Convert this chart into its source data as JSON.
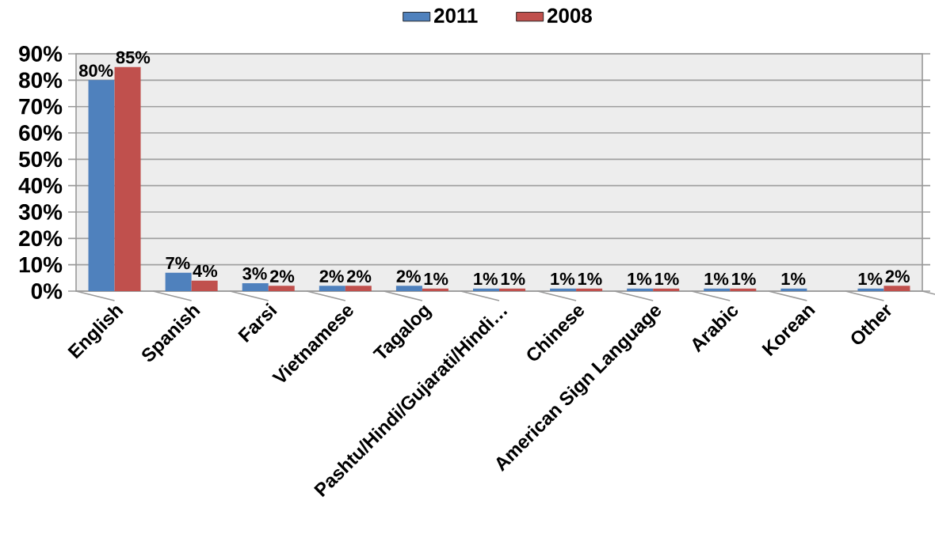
{
  "chart_data": {
    "type": "bar",
    "categories": [
      "English",
      "Spanish",
      "Farsi",
      "Vietnamese",
      "Tagalog",
      "Pashtu/Hindi/Gujarati/Hindi…",
      "Chinese",
      "American Sign Language",
      "Arabic",
      "Korean",
      "Other"
    ],
    "series": [
      {
        "name": "2011",
        "color": "#4f81bd",
        "values": [
          80,
          7,
          3,
          2,
          2,
          1,
          1,
          1,
          1,
          1,
          1
        ],
        "value_labels": [
          "80%",
          "7%",
          "3%",
          "2%",
          "2%",
          "1%",
          "1%",
          "1%",
          "1%",
          "1%",
          "1%"
        ]
      },
      {
        "name": "2008",
        "color": "#c0504d",
        "values": [
          85,
          4,
          2,
          2,
          1,
          1,
          1,
          1,
          1,
          null,
          2
        ],
        "value_labels": [
          "85%",
          "4%",
          "2%",
          "2%",
          "1%",
          "1%",
          "1%",
          "1%",
          "1%",
          null,
          "2%"
        ]
      }
    ],
    "ylim": [
      0,
      90
    ],
    "yticks": [
      {
        "value": 0,
        "label": "0%"
      },
      {
        "value": 10,
        "label": "10%"
      },
      {
        "value": 20,
        "label": "20%"
      },
      {
        "value": 30,
        "label": "30%"
      },
      {
        "value": 40,
        "label": "40%"
      },
      {
        "value": 50,
        "label": "50%"
      },
      {
        "value": 60,
        "label": "60%"
      },
      {
        "value": 70,
        "label": "70%"
      },
      {
        "value": 80,
        "label": "80%"
      },
      {
        "value": 90,
        "label": "90%"
      }
    ],
    "grid": "y",
    "legend": "top"
  }
}
